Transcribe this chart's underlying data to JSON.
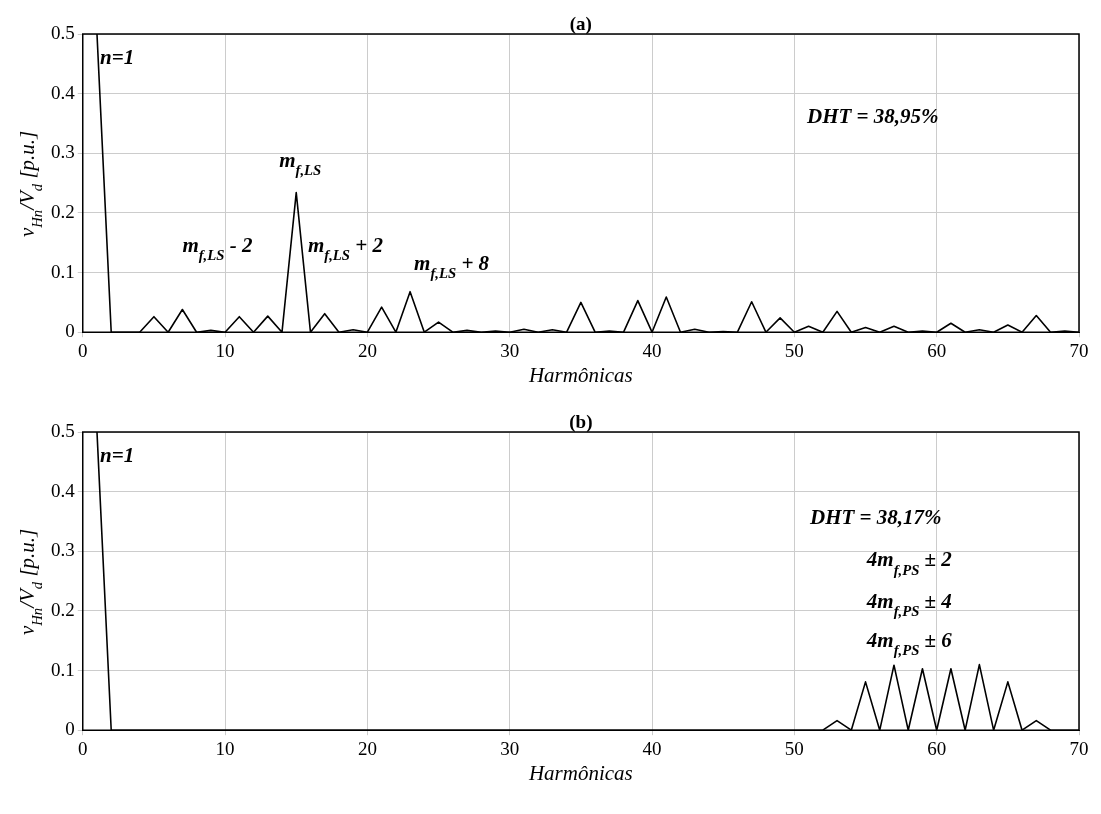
{
  "chart_data": [
    {
      "type": "line",
      "title": "(a)",
      "xlabel": "Harmônicas",
      "ylabel": "v$_{Hn}$/V$_{d}$ [p.u.]",
      "x": [
        1,
        2,
        3,
        4,
        5,
        6,
        7,
        8,
        9,
        10,
        11,
        12,
        13,
        14,
        15,
        16,
        17,
        18,
        19,
        20,
        21,
        22,
        23,
        24,
        25,
        26,
        27,
        28,
        29,
        30,
        31,
        32,
        33,
        34,
        35,
        36,
        37,
        38,
        39,
        40,
        41,
        42,
        43,
        44,
        45,
        46,
        47,
        48,
        49,
        50,
        51,
        52,
        53,
        54,
        55,
        56,
        57,
        58,
        59,
        60,
        61,
        62,
        63,
        64,
        65,
        66,
        67,
        68,
        69,
        70
      ],
      "series": [
        {
          "color": "#000000",
          "values": [
            0.5,
            0,
            0,
            0,
            0.026,
            0,
            0.038,
            0,
            0.003,
            0,
            0.026,
            0,
            0.027,
            0,
            0.234,
            0,
            0.031,
            0,
            0.004,
            0,
            0.042,
            0,
            0.068,
            0,
            0.017,
            0,
            0.003,
            0,
            0.002,
            0,
            0.005,
            0,
            0.004,
            0,
            0.05,
            0,
            0.002,
            0,
            0.053,
            0,
            0.059,
            0,
            0.005,
            0,
            0.001,
            0,
            0.051,
            0,
            0.024,
            0,
            0.01,
            0,
            0.035,
            0,
            0.008,
            0,
            0.01,
            0,
            0.002,
            0,
            0.015,
            0,
            0.004,
            0,
            0.012,
            0,
            0.028,
            0,
            0.002,
            0
          ]
        }
      ],
      "xlim": [
        0,
        70
      ],
      "xticks": [
        0,
        10,
        20,
        30,
        40,
        50,
        60,
        70
      ],
      "ylim": [
        0,
        0.5
      ],
      "yticks": [
        0,
        0.1,
        0.2,
        0.3,
        0.4,
        0.5
      ],
      "grid": true,
      "line_style": "solid",
      "marker": "none",
      "annotations": [
        {
          "text": "n=1",
          "x": 1,
          "y": 0.5
        },
        {
          "text": "m$_{f,LS}$",
          "x": 15,
          "y": 0.234
        },
        "m$_{f,LS}$ - 2",
        "m$_{f,LS}$ + 2",
        {
          "text": "m$_{f,LS}$ + 8",
          "x": 23,
          "y": 0.068
        },
        "DHT = 38,95%"
      ]
    },
    {
      "type": "line",
      "title": "(b)",
      "xlabel": "Harmônicas",
      "ylabel": "v$_{Hn}$/V$_{d}$ [p.u.]",
      "x": [
        1,
        2,
        3,
        4,
        5,
        6,
        7,
        8,
        9,
        10,
        11,
        12,
        13,
        14,
        15,
        16,
        17,
        18,
        19,
        20,
        21,
        22,
        23,
        24,
        25,
        26,
        27,
        28,
        29,
        30,
        31,
        32,
        33,
        34,
        35,
        36,
        37,
        38,
        39,
        40,
        41,
        42,
        43,
        44,
        45,
        46,
        47,
        48,
        49,
        50,
        51,
        52,
        53,
        54,
        55,
        56,
        57,
        58,
        59,
        60,
        61,
        62,
        63,
        64,
        65,
        66,
        67,
        68,
        69,
        70
      ],
      "series": [
        {
          "color": "#000000",
          "values": [
            0.5,
            0,
            0,
            0,
            0,
            0,
            0,
            0,
            0,
            0,
            0,
            0,
            0,
            0,
            0,
            0,
            0,
            0,
            0,
            0,
            0,
            0,
            0,
            0,
            0,
            0,
            0,
            0,
            0,
            0,
            0,
            0,
            0,
            0,
            0,
            0,
            0,
            0,
            0,
            0,
            0,
            0,
            0,
            0,
            0,
            0,
            0,
            0,
            0,
            0,
            0,
            0,
            0.016,
            0,
            0.081,
            0,
            0.109,
            0,
            0.103,
            0,
            0.103,
            0,
            0.11,
            0,
            0.081,
            0,
            0.016,
            0,
            0,
            0
          ]
        }
      ],
      "xlim": [
        0,
        70
      ],
      "xticks": [
        0,
        10,
        20,
        30,
        40,
        50,
        60,
        70
      ],
      "ylim": [
        0,
        0.5
      ],
      "yticks": [
        0,
        0.1,
        0.2,
        0.3,
        0.4,
        0.5
      ],
      "grid": true,
      "line_style": "solid",
      "marker": "none",
      "annotations": [
        {
          "text": "n=1",
          "x": 1,
          "y": 0.5
        },
        "DHT = 38,17%",
        "4m$_{f,PS}$ ± 2",
        "4m$_{f,PS}$ ± 4",
        "4m$_{f,PS}$ ± 6"
      ]
    }
  ]
}
